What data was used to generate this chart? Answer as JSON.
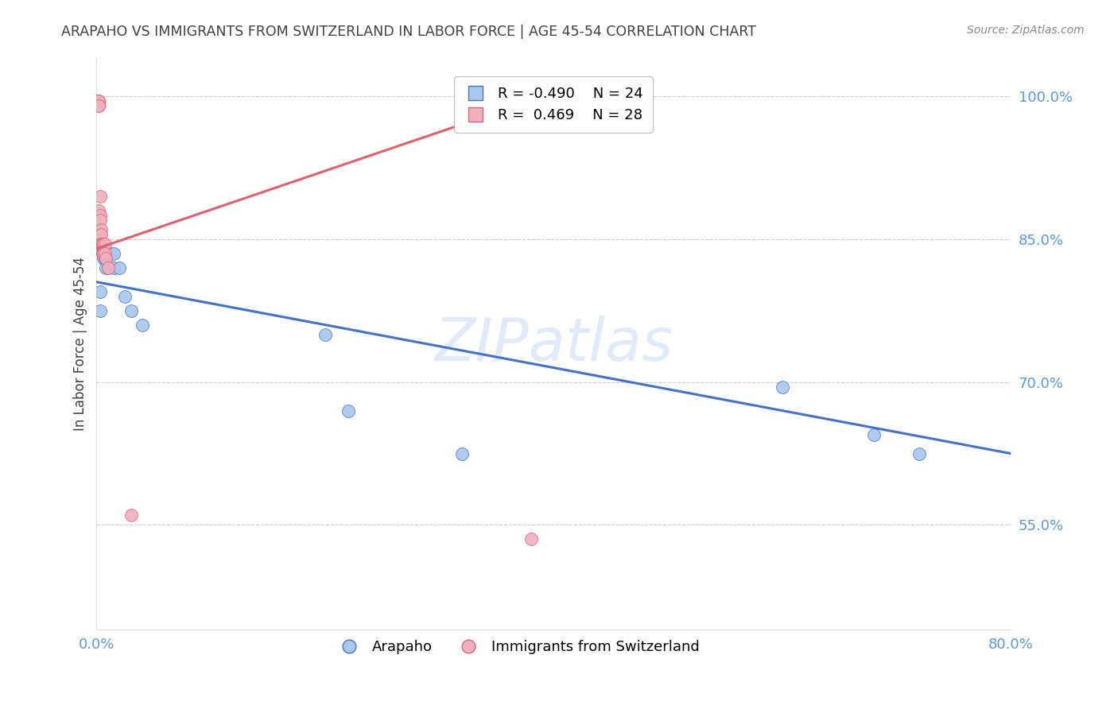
{
  "title": "ARAPAHO VS IMMIGRANTS FROM SWITZERLAND IN LABOR FORCE | AGE 45-54 CORRELATION CHART",
  "source": "Source: ZipAtlas.com",
  "ylabel": "In Labor Force | Age 45-54",
  "blue_R": -0.49,
  "blue_N": 24,
  "pink_R": 0.469,
  "pink_N": 28,
  "blue_label": "Arapaho",
  "pink_label": "Immigrants from Switzerland",
  "xlim": [
    0.0,
    0.8
  ],
  "ylim": [
    0.44,
    1.04
  ],
  "yticks": [
    0.55,
    0.7,
    0.85,
    1.0
  ],
  "ytick_labels": [
    "55.0%",
    "70.0%",
    "85.0%",
    "100.0%"
  ],
  "xticks": [
    0.0,
    0.2,
    0.4,
    0.6,
    0.8
  ],
  "xtick_labels": [
    "0.0%",
    "",
    "",
    "",
    "80.0%"
  ],
  "blue_color": "#a8c8f0",
  "pink_color": "#f0b0c0",
  "blue_line_color": "#4472c4",
  "pink_line_color": "#e06070",
  "title_color": "#404040",
  "axis_color": "#5b9bd5",
  "watermark": "ZIPatlas",
  "blue_x": [
    0.003,
    0.003,
    0.005,
    0.005,
    0.006,
    0.006,
    0.007,
    0.008,
    0.008,
    0.01,
    0.01,
    0.012,
    0.015,
    0.015,
    0.02,
    0.025,
    0.03,
    0.04,
    0.2,
    0.22,
    0.32,
    0.6,
    0.68,
    0.72
  ],
  "blue_y": [
    0.795,
    0.775,
    0.84,
    0.835,
    0.84,
    0.83,
    0.83,
    0.83,
    0.82,
    0.835,
    0.82,
    0.835,
    0.835,
    0.82,
    0.82,
    0.79,
    0.775,
    0.76,
    0.75,
    0.67,
    0.625,
    0.695,
    0.645,
    0.625
  ],
  "pink_x": [
    0.001,
    0.001,
    0.001,
    0.001,
    0.002,
    0.002,
    0.002,
    0.002,
    0.002,
    0.003,
    0.003,
    0.003,
    0.003,
    0.004,
    0.004,
    0.004,
    0.004,
    0.005,
    0.005,
    0.005,
    0.006,
    0.006,
    0.007,
    0.007,
    0.008,
    0.01,
    0.03,
    0.38
  ],
  "pink_y": [
    0.995,
    0.995,
    0.995,
    0.995,
    0.995,
    0.995,
    0.99,
    0.99,
    0.88,
    0.895,
    0.875,
    0.87,
    0.855,
    0.86,
    0.855,
    0.845,
    0.845,
    0.845,
    0.835,
    0.845,
    0.845,
    0.835,
    0.845,
    0.835,
    0.83,
    0.82,
    0.56,
    0.535
  ],
  "blue_trendline_x": [
    0.0,
    0.8
  ],
  "blue_trendline_y": [
    0.805,
    0.625
  ],
  "pink_trendline_x": [
    0.0,
    0.38
  ],
  "pink_trendline_y": [
    0.84,
    0.995
  ]
}
